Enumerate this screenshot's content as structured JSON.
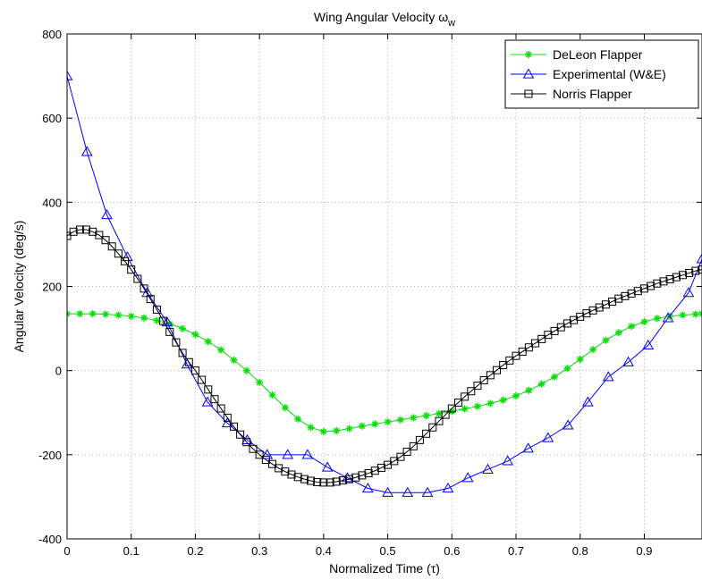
{
  "chart_data": {
    "type": "line",
    "title": "Wing Angular Velocity ω",
    "title_subscript": "w",
    "xlabel": "Normalized Time (τ)",
    "ylabel": "Angular Velocity (deg/s)",
    "xlim": [
      0,
      0.99
    ],
    "ylim": [
      -400,
      800
    ],
    "xticks": [
      0,
      0.1,
      0.2,
      0.3,
      0.4,
      0.5,
      0.6,
      0.7,
      0.8,
      0.9
    ],
    "xtick_labels": [
      "0",
      "0.1",
      "0.2",
      "0.3",
      "0.4",
      "0.5",
      "0.6",
      "0.7",
      "0.8",
      "0.9"
    ],
    "yticks": [
      -400,
      -200,
      0,
      200,
      400,
      600,
      800
    ],
    "ytick_labels": [
      "-400",
      "-200",
      "0",
      "200",
      "400",
      "600",
      "800"
    ],
    "grid": true,
    "legend_position": "top-right",
    "series": [
      {
        "name": "DeLeon Flapper",
        "color": "#00e000",
        "marker": "star",
        "x": [
          0,
          0.02,
          0.04,
          0.06,
          0.08,
          0.1,
          0.12,
          0.14,
          0.16,
          0.18,
          0.2,
          0.22,
          0.24,
          0.26,
          0.28,
          0.3,
          0.32,
          0.34,
          0.36,
          0.38,
          0.4,
          0.42,
          0.44,
          0.46,
          0.48,
          0.5,
          0.52,
          0.54,
          0.56,
          0.58,
          0.6,
          0.62,
          0.64,
          0.66,
          0.68,
          0.7,
          0.72,
          0.74,
          0.76,
          0.78,
          0.8,
          0.82,
          0.84,
          0.86,
          0.88,
          0.9,
          0.92,
          0.94,
          0.96,
          0.98,
          0.99
        ],
        "y": [
          135,
          135,
          135,
          134,
          132,
          129,
          125,
          119,
          111,
          100,
          86,
          69,
          49,
          25,
          0,
          -28,
          -58,
          -88,
          -115,
          -135,
          -145,
          -143,
          -138,
          -132,
          -127,
          -122,
          -117,
          -112,
          -107,
          -102,
          -97,
          -91,
          -85,
          -78,
          -70,
          -60,
          -47,
          -32,
          -15,
          5,
          27,
          50,
          72,
          90,
          105,
          116,
          124,
          129,
          132,
          134,
          135
        ]
      },
      {
        "name": "Experimental (W&E)",
        "color": "#0000ff",
        "marker": "triangle",
        "x": [
          0,
          0.031,
          0.062,
          0.094,
          0.125,
          0.156,
          0.187,
          0.219,
          0.25,
          0.281,
          0.312,
          0.344,
          0.375,
          0.406,
          0.437,
          0.469,
          0.5,
          0.531,
          0.562,
          0.594,
          0.625,
          0.656,
          0.687,
          0.719,
          0.75,
          0.781,
          0.812,
          0.844,
          0.875,
          0.906,
          0.937,
          0.969,
          0.99
        ],
        "y": [
          700,
          520,
          370,
          270,
          185,
          115,
          15,
          -75,
          -125,
          -165,
          -200,
          -200,
          -200,
          -230,
          -255,
          -280,
          -290,
          -290,
          -290,
          -280,
          -255,
          -235,
          -215,
          -185,
          -160,
          -130,
          -75,
          -15,
          20,
          60,
          125,
          185,
          265
        ]
      },
      {
        "name": "Norris Flapper",
        "color": "#000000",
        "marker": "square",
        "x": [
          0,
          0.01,
          0.02,
          0.03,
          0.04,
          0.05,
          0.06,
          0.07,
          0.08,
          0.09,
          0.1,
          0.11,
          0.12,
          0.13,
          0.14,
          0.15,
          0.16,
          0.17,
          0.18,
          0.19,
          0.2,
          0.21,
          0.22,
          0.23,
          0.24,
          0.25,
          0.26,
          0.27,
          0.28,
          0.29,
          0.3,
          0.31,
          0.32,
          0.33,
          0.34,
          0.35,
          0.36,
          0.37,
          0.38,
          0.39,
          0.4,
          0.41,
          0.42,
          0.43,
          0.44,
          0.45,
          0.46,
          0.47,
          0.48,
          0.49,
          0.5,
          0.51,
          0.52,
          0.53,
          0.54,
          0.55,
          0.56,
          0.57,
          0.58,
          0.59,
          0.6,
          0.61,
          0.62,
          0.63,
          0.64,
          0.65,
          0.66,
          0.67,
          0.68,
          0.69,
          0.7,
          0.71,
          0.72,
          0.73,
          0.74,
          0.75,
          0.76,
          0.77,
          0.78,
          0.79,
          0.8,
          0.81,
          0.82,
          0.83,
          0.84,
          0.85,
          0.86,
          0.87,
          0.88,
          0.89,
          0.9,
          0.91,
          0.92,
          0.93,
          0.94,
          0.95,
          0.96,
          0.97,
          0.98,
          0.99
        ],
        "y": [
          320,
          330,
          335,
          335,
          330,
          322,
          310,
          295,
          278,
          260,
          240,
          218,
          195,
          170,
          145,
          118,
          92,
          67,
          42,
          20,
          0,
          -22,
          -45,
          -68,
          -90,
          -112,
          -133,
          -152,
          -170,
          -186,
          -200,
          -212,
          -222,
          -232,
          -240,
          -247,
          -253,
          -258,
          -262,
          -265,
          -266,
          -266,
          -264,
          -261,
          -258,
          -254,
          -249,
          -244,
          -238,
          -231,
          -224,
          -215,
          -205,
          -193,
          -180,
          -165,
          -150,
          -135,
          -120,
          -105,
          -90,
          -76,
          -62,
          -49,
          -36,
          -23,
          -11,
          1,
          13,
          24,
          35,
          45,
          55,
          65,
          75,
          85,
          94,
          103,
          112,
          120,
          128,
          136,
          143,
          150,
          157,
          164,
          171,
          177,
          183,
          189,
          195,
          201,
          207,
          212,
          217,
          222,
          227,
          232,
          237,
          240
        ]
      }
    ]
  }
}
